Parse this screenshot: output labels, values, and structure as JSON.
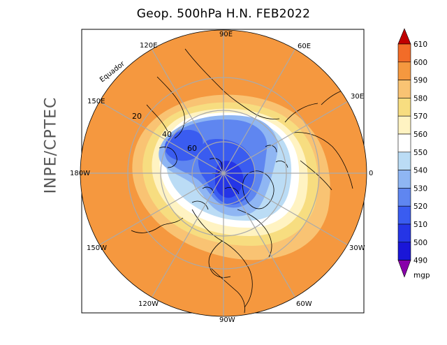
{
  "title": "Geop. 500hPa H.N. FEB2022",
  "side_label": "INPE/CPTEC",
  "map": {
    "equator_label": "Equador",
    "longitude_labels": [
      "90E",
      "60E",
      "30E",
      "0",
      "30W",
      "60W",
      "90W",
      "120W",
      "150W",
      "180W",
      "150E",
      "120E"
    ],
    "latitude_labels": [
      "20",
      "40",
      "60"
    ]
  },
  "colorbar": {
    "unit": "mgp",
    "levels": [
      "610",
      "600",
      "590",
      "580",
      "570",
      "560",
      "550",
      "540",
      "530",
      "520",
      "510",
      "500",
      "490"
    ],
    "colors": [
      "#e8221e",
      "#f26c28",
      "#f5983f",
      "#f9c373",
      "#f7dd80",
      "#fff3c2",
      "#ffffff",
      "#bbdcf5",
      "#8fb6f3",
      "#5f86f0",
      "#3a5cf0",
      "#2535e6",
      "#1a16d8",
      "#1800c8",
      "#7a00a0"
    ],
    "top_arrow_color": "#c00000",
    "bottom_arrow_color": "#8800aa"
  }
}
